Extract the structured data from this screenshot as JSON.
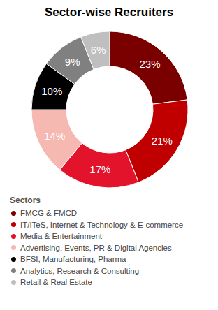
{
  "chart_data": {
    "type": "donut",
    "title": "Sector-wise Recruiters",
    "legend_title": "Sectors",
    "categories": [
      "FMCG & FMCD",
      "IT/ITeS, Internet & Technology & E-commerce",
      "Media & Entertainment",
      "Advertising, Events, PR & Digital Agencies",
      "BFSI, Manufacturing, Pharma",
      "Analytics, Research & Consulting",
      "Retail & Real Estate"
    ],
    "values": [
      23,
      21,
      17,
      14,
      10,
      9,
      6
    ],
    "value_labels": [
      "23%",
      "21%",
      "17%",
      "14%",
      "10%",
      "9%",
      "6%"
    ],
    "colors": [
      "#7a0000",
      "#c00000",
      "#e3132c",
      "#f6b9b2",
      "#000000",
      "#808080",
      "#bfbfbf"
    ],
    "data_labels": true,
    "legend": "bottom"
  }
}
